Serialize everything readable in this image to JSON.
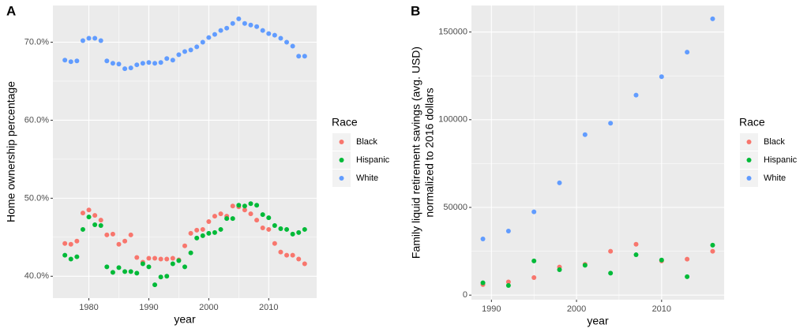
{
  "chart_data": [
    {
      "type": "scatter",
      "panel_label": "A",
      "x_label": "year",
      "y_label": [
        "Home ownership percentage"
      ],
      "xlim": [
        1974,
        2018
      ],
      "xticks": [
        1980,
        1990,
        2000,
        2010
      ],
      "ylim": [
        37.2,
        74.7
      ],
      "yticks": [
        {
          "value": 40,
          "label": "40.0%"
        },
        {
          "value": 50,
          "label": "50.0%"
        },
        {
          "value": 60,
          "label": "60.0%"
        },
        {
          "value": 70,
          "label": "70.0%"
        }
      ],
      "grid": true,
      "legend_title": "Race",
      "legend": "right",
      "x": [
        1976,
        1977,
        1978,
        1979,
        1980,
        1981,
        1982,
        1983,
        1984,
        1985,
        1986,
        1987,
        1988,
        1989,
        1990,
        1991,
        1992,
        1993,
        1994,
        1995,
        1996,
        1997,
        1998,
        1999,
        2000,
        2001,
        2002,
        2003,
        2004,
        2005,
        2006,
        2007,
        2008,
        2009,
        2010,
        2011,
        2012,
        2013,
        2014,
        2015,
        2016
      ],
      "series": [
        {
          "name": "Black",
          "color": "#F8766D",
          "values": [
            44.2,
            44.1,
            44.5,
            48.1,
            48.5,
            47.8,
            47.2,
            45.3,
            45.4,
            44.1,
            44.5,
            45.3,
            42.4,
            41.8,
            42.3,
            42.3,
            42.2,
            42.2,
            42.3,
            42.1,
            43.9,
            45.5,
            45.9,
            46.0,
            47.0,
            47.7,
            48.0,
            47.7,
            49.0,
            48.9,
            48.5,
            48.0,
            47.2,
            46.2,
            46.0,
            44.2,
            43.1,
            42.7,
            42.7,
            42.2,
            41.6
          ]
        },
        {
          "name": "Hispanic",
          "color": "#00BA38",
          "values": [
            42.7,
            42.2,
            42.5,
            46.0,
            47.6,
            46.6,
            46.5,
            41.2,
            40.5,
            41.1,
            40.6,
            40.6,
            40.4,
            41.6,
            41.2,
            38.9,
            39.9,
            40.0,
            41.6,
            42.0,
            41.2,
            43.0,
            44.9,
            45.2,
            45.5,
            45.6,
            46.0,
            47.4,
            47.4,
            49.1,
            49.0,
            49.3,
            49.1,
            47.9,
            47.5,
            46.5,
            46.1,
            46.0,
            45.4,
            45.6,
            46.0
          ]
        },
        {
          "name": "White",
          "color": "#619CFF",
          "values": [
            67.7,
            67.5,
            67.6,
            70.2,
            70.5,
            70.5,
            70.2,
            67.6,
            67.3,
            67.2,
            66.6,
            66.7,
            67.1,
            67.3,
            67.4,
            67.3,
            67.4,
            67.9,
            67.7,
            68.4,
            68.8,
            69.0,
            69.4,
            70.0,
            70.6,
            71.0,
            71.5,
            71.8,
            72.4,
            73.0,
            72.4,
            72.2,
            72.0,
            71.5,
            71.1,
            70.9,
            70.5,
            70.0,
            69.5,
            68.2,
            68.2
          ]
        }
      ]
    },
    {
      "type": "scatter",
      "panel_label": "B",
      "x_label": "year",
      "y_label": [
        "Family liquid retirement savings (avg. USD)",
        "normalized to 2016 dollars"
      ],
      "xlim": [
        1987.65,
        2017.35
      ],
      "xticks": [
        1990,
        2000,
        2010
      ],
      "ylim": [
        -2600,
        165100
      ],
      "yticks": [
        0,
        50000,
        100000,
        150000
      ],
      "grid": true,
      "legend_title": "Race",
      "legend": "right",
      "x": [
        1989,
        1992,
        1995,
        1998,
        2001,
        2004,
        2007,
        2010,
        2013,
        2016
      ],
      "series": [
        {
          "name": "Black",
          "color": "#F8766D",
          "values": [
            6000,
            7500,
            10000,
            16000,
            17500,
            25000,
            29000,
            19500,
            20500,
            25000
          ]
        },
        {
          "name": "Hispanic",
          "color": "#00BA38",
          "values": [
            7000,
            5500,
            19500,
            14500,
            17000,
            12500,
            23000,
            20000,
            10500,
            28500
          ]
        },
        {
          "name": "White",
          "color": "#619CFF",
          "values": [
            32000,
            36500,
            47500,
            64000,
            91500,
            98000,
            114000,
            124500,
            138500,
            157500
          ]
        }
      ]
    }
  ]
}
